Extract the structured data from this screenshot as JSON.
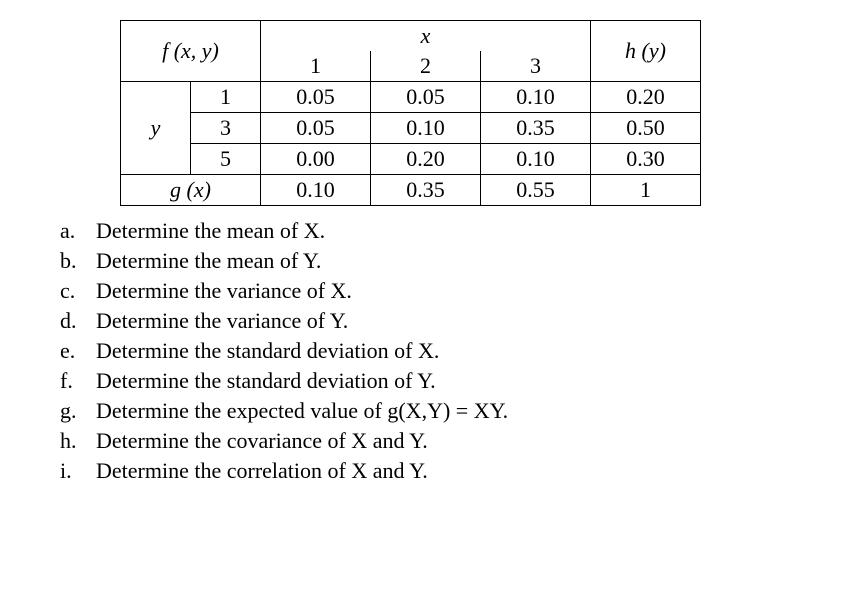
{
  "table": {
    "header_fxy": "f (x, y)",
    "header_x": "x",
    "header_hy": "h (y)",
    "x_vals": [
      "1",
      "2",
      "3"
    ],
    "row_label_y": "y",
    "y_vals": [
      "1",
      "3",
      "5"
    ],
    "cells": [
      [
        "0.05",
        "0.05",
        "0.10"
      ],
      [
        "0.05",
        "0.10",
        "0.35"
      ],
      [
        "0.00",
        "0.20",
        "0.10"
      ]
    ],
    "hy": [
      "0.20",
      "0.50",
      "0.30"
    ],
    "gx_label": "g (x)",
    "gx": [
      "0.10",
      "0.35",
      "0.55"
    ],
    "total": "1"
  },
  "questions": {
    "a": "Determine the mean of X.",
    "b": "Determine the mean of Y.",
    "c": "Determine the variance of X.",
    "d": "Determine the variance of Y.",
    "e": "Determine the standard deviation of X.",
    "f": "Determine the standard deviation of Y.",
    "g": "Determine the expected value of g(X,Y) = XY.",
    "h": "Determine the covariance of X and Y.",
    "i": "Determine the correlation of X and Y."
  },
  "labels": {
    "a": "a.",
    "b": "b.",
    "c": "c.",
    "d": "d.",
    "e": "e.",
    "f": "f.",
    "g": "g.",
    "h": "h.",
    "i": "i."
  }
}
